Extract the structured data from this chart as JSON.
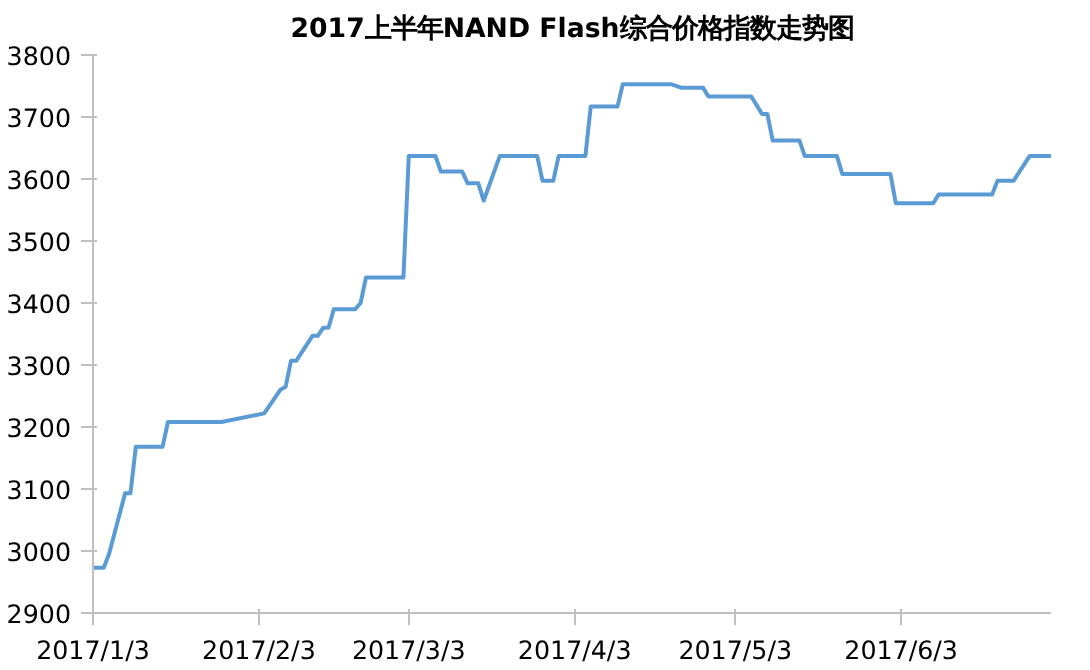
{
  "chart_data": {
    "type": "line",
    "title": "2017上半年NAND Flash综合价格指数走势图",
    "x": [
      "2017-01-03",
      "2017-01-05",
      "2017-01-06",
      "2017-01-09",
      "2017-01-10",
      "2017-01-11",
      "2017-01-16",
      "2017-01-17",
      "2017-01-27",
      "2017-02-04",
      "2017-02-07",
      "2017-02-08",
      "2017-02-09",
      "2017-02-10",
      "2017-02-13",
      "2017-02-14",
      "2017-02-15",
      "2017-02-16",
      "2017-02-17",
      "2017-02-21",
      "2017-02-22",
      "2017-02-23",
      "2017-03-02",
      "2017-03-03",
      "2017-03-08",
      "2017-03-09",
      "2017-03-13",
      "2017-03-14",
      "2017-03-16",
      "2017-03-17",
      "2017-03-20",
      "2017-03-27",
      "2017-03-28",
      "2017-03-30",
      "2017-03-31",
      "2017-04-05",
      "2017-04-06",
      "2017-04-11",
      "2017-04-12",
      "2017-04-21",
      "2017-04-23",
      "2017-04-27",
      "2017-04-28",
      "2017-05-06",
      "2017-05-08",
      "2017-05-09",
      "2017-05-10",
      "2017-05-15",
      "2017-05-16",
      "2017-05-22",
      "2017-05-23",
      "2017-06-01",
      "2017-06-02",
      "2017-06-09",
      "2017-06-10",
      "2017-06-20",
      "2017-06-21",
      "2017-06-24",
      "2017-06-27",
      "2017-07-01"
    ],
    "series": [
      {
        "color": "#5b9bd5",
        "values": [
          2973,
          2973,
          2995,
          3093,
          3093,
          3168,
          3168,
          3208,
          3208,
          3222,
          3260,
          3265,
          3307,
          3307,
          3347,
          3347,
          3360,
          3360,
          3390,
          3390,
          3400,
          3441,
          3441,
          3637,
          3637,
          3612,
          3612,
          3593,
          3593,
          3565,
          3637,
          3637,
          3597,
          3597,
          3637,
          3637,
          3717,
          3717,
          3753,
          3753,
          3747,
          3747,
          3733,
          3733,
          3705,
          3705,
          3662,
          3662,
          3637,
          3637,
          3608,
          3608,
          3561,
          3561,
          3575,
          3575,
          3597,
          3597,
          3637,
          3637
        ]
      }
    ],
    "xlim": [
      "2017-01-03",
      "2017-07-01"
    ],
    "xticks": [
      {
        "value": "2017-01-03",
        "label": "2017/1/3"
      },
      {
        "value": "2017-02-03",
        "label": "2017/2/3"
      },
      {
        "value": "2017-03-03",
        "label": "2017/3/3"
      },
      {
        "value": "2017-04-03",
        "label": "2017/4/3"
      },
      {
        "value": "2017-05-03",
        "label": "2017/5/3"
      },
      {
        "value": "2017-06-03",
        "label": "2017/6/3"
      }
    ],
    "ylim": [
      2900,
      3800
    ],
    "yticks": [
      2900,
      3000,
      3100,
      3200,
      3300,
      3400,
      3500,
      3600,
      3700,
      3800
    ],
    "grid": false,
    "marker": "none",
    "line_style": "solid"
  }
}
